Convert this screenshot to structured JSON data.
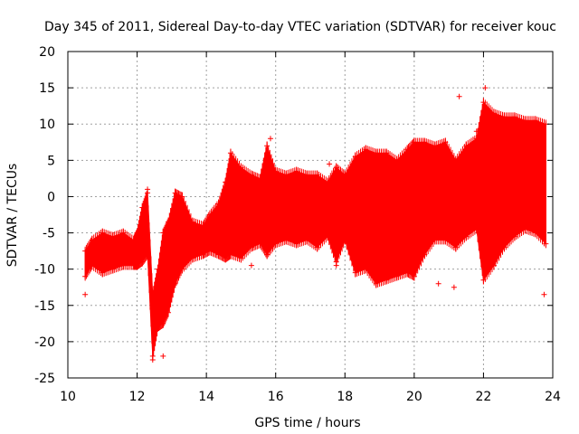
{
  "chart_data": {
    "type": "scatter",
    "title": "Day 345 of 2011, Sidereal Day-to-day VTEC variation (SDTVAR) for receiver kouc",
    "xlabel": "GPS time / hours",
    "ylabel": "SDTVAR / TECUs",
    "xlim": [
      10,
      24
    ],
    "ylim": [
      -25,
      20
    ],
    "xticks": [
      10,
      12,
      14,
      16,
      18,
      20,
      22,
      24
    ],
    "yticks": [
      -25,
      -20,
      -15,
      -10,
      -5,
      0,
      5,
      10,
      15,
      20
    ],
    "grid": true,
    "marker": "+",
    "color": "#ff0000",
    "series": [
      {
        "name": "SDTVAR",
        "envelope": {
          "x": [
            10.5,
            10.7,
            11.0,
            11.3,
            11.6,
            11.9,
            12.0,
            12.15,
            12.3,
            12.45,
            12.6,
            12.75,
            12.9,
            13.1,
            13.3,
            13.6,
            13.9,
            14.1,
            14.35,
            14.55,
            14.7,
            15.0,
            15.3,
            15.55,
            15.75,
            16.0,
            16.3,
            16.6,
            16.9,
            17.2,
            17.5,
            17.75,
            18.0,
            18.3,
            18.6,
            18.9,
            19.2,
            19.5,
            19.8,
            20.0,
            20.3,
            20.6,
            20.9,
            21.2,
            21.5,
            21.8,
            22.0,
            22.3,
            22.6,
            22.9,
            23.2,
            23.5,
            23.8
          ],
          "upper": [
            -7.5,
            -6.0,
            -5.0,
            -5.5,
            -5.0,
            -6.0,
            -5.0,
            -1.5,
            0.5,
            -13.5,
            -10.0,
            -5.0,
            -3.5,
            0.5,
            0.0,
            -3.5,
            -4.0,
            -2.5,
            -1.0,
            2.0,
            6.0,
            4.0,
            3.0,
            2.5,
            7.0,
            3.5,
            3.0,
            3.5,
            3.0,
            3.0,
            2.0,
            4.0,
            3.0,
            5.5,
            6.5,
            6.0,
            6.0,
            5.0,
            6.5,
            7.5,
            7.5,
            7.0,
            7.5,
            5.0,
            7.0,
            8.0,
            13.0,
            11.5,
            11.0,
            11.0,
            10.5,
            10.5,
            10.0
          ],
          "lower": [
            -11.0,
            -9.5,
            -10.5,
            -10.0,
            -9.5,
            -9.5,
            -9.5,
            -9.0,
            -8.0,
            -22.0,
            -18.0,
            -17.5,
            -16.0,
            -12.0,
            -10.0,
            -8.5,
            -8.0,
            -7.5,
            -8.0,
            -8.5,
            -8.0,
            -8.5,
            -7.0,
            -6.5,
            -8.0,
            -6.5,
            -6.0,
            -6.5,
            -6.0,
            -7.0,
            -5.5,
            -9.0,
            -6.0,
            -10.5,
            -10.0,
            -12.0,
            -11.5,
            -11.0,
            -10.5,
            -11.0,
            -8.0,
            -6.0,
            -6.0,
            -7.0,
            -5.5,
            -4.5,
            -11.5,
            -9.5,
            -7.0,
            -5.5,
            -4.5,
            -5.0,
            -6.5
          ]
        },
        "outliers": [
          {
            "x": 10.5,
            "y": -13.5
          },
          {
            "x": 12.3,
            "y": 1.0
          },
          {
            "x": 12.45,
            "y": -22.5
          },
          {
            "x": 12.75,
            "y": -22.0
          },
          {
            "x": 15.85,
            "y": 8.0
          },
          {
            "x": 15.3,
            "y": -9.5
          },
          {
            "x": 17.55,
            "y": 4.5
          },
          {
            "x": 17.75,
            "y": -9.5
          },
          {
            "x": 20.0,
            "y": -10.5
          },
          {
            "x": 20.7,
            "y": -12.0
          },
          {
            "x": 21.15,
            "y": -12.5
          },
          {
            "x": 21.3,
            "y": 13.8
          },
          {
            "x": 21.8,
            "y": 9.0
          },
          {
            "x": 22.05,
            "y": 15.0
          },
          {
            "x": 23.75,
            "y": -13.5
          }
        ]
      }
    ]
  }
}
